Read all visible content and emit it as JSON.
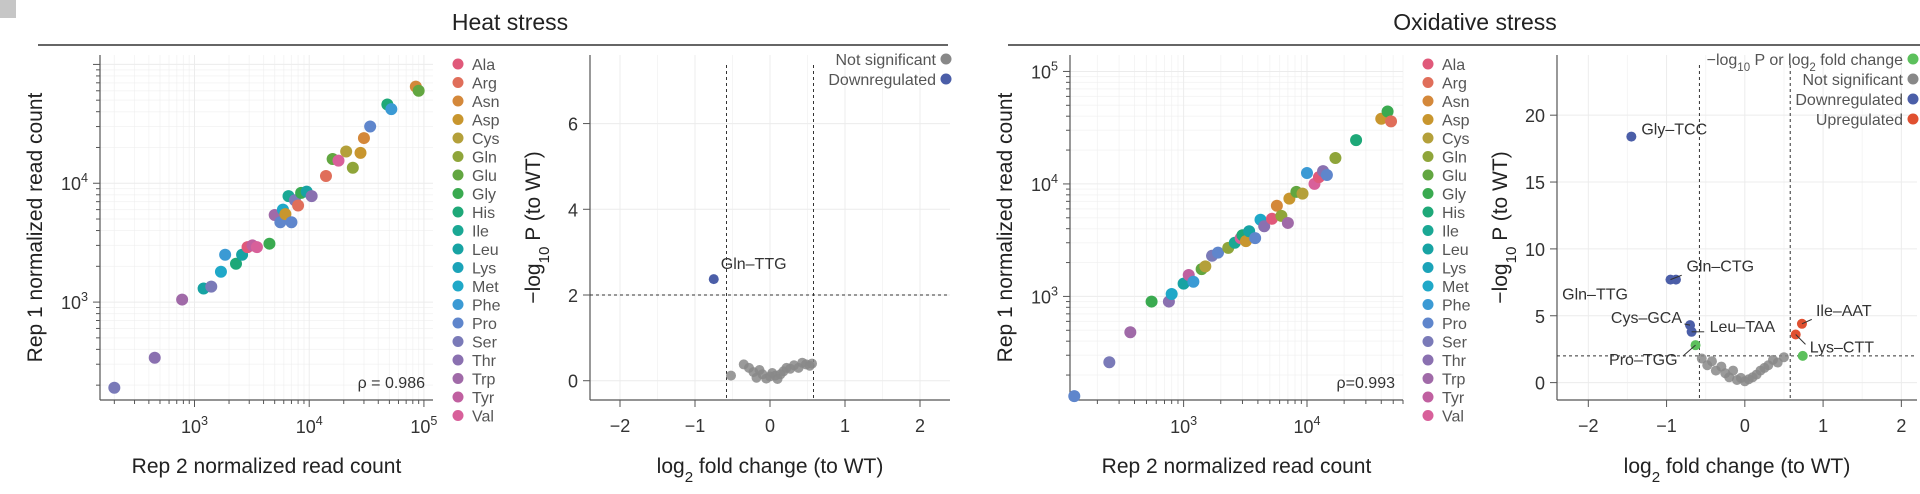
{
  "corner_mark": "",
  "panel_titles": {
    "heat": "Heat stress",
    "oxidative": "Oxidative stress"
  },
  "amino_acids": [
    "Ala",
    "Arg",
    "Asn",
    "Asp",
    "Cys",
    "Gln",
    "Glu",
    "Gly",
    "His",
    "Ile",
    "Leu",
    "Lys",
    "Met",
    "Phe",
    "Pro",
    "Ser",
    "Thr",
    "Trp",
    "Tyr",
    "Val"
  ],
  "aa_colors": {
    "Ala": "#e0597a",
    "Arg": "#e06e5a",
    "Asn": "#d4883a",
    "Asp": "#c8962e",
    "Cys": "#b4a03a",
    "Gln": "#8fa53a",
    "Glu": "#62a640",
    "Gly": "#3aaa50",
    "His": "#1ea878",
    "Ile": "#1aa894",
    "Leu": "#17a3a3",
    "Lys": "#1ba3b8",
    "Met": "#1fa8c8",
    "Phe": "#3b9ad4",
    "Pro": "#5f86cc",
    "Ser": "#7a7ab8",
    "Thr": "#8a70b0",
    "Trp": "#a06aa8",
    "Tyr": "#c060a0",
    "Val": "#d8609a"
  },
  "status_colors": {
    "not_significant": "#888888",
    "downregulated": "#4b5ea8",
    "upregulated": "#e05030",
    "threshold": "#5cc05c"
  },
  "chart_data": [
    {
      "id": "heat_scatter",
      "type": "scatter",
      "title": "Heat stress",
      "xlabel": "Rep 2 normalized read count",
      "ylabel": "Rep 1 normalized read count",
      "xscale": "log",
      "yscale": "log",
      "xlim": [
        150,
        120000
      ],
      "ylim": [
        150,
        120000
      ],
      "xticks": [
        {
          "v": 1000,
          "label": "10³"
        },
        {
          "v": 10000,
          "label": "10⁴"
        },
        {
          "v": 100000,
          "label": "10⁵"
        }
      ],
      "yticks": [
        {
          "v": 1000,
          "label": "10³"
        },
        {
          "v": 10000,
          "label": "10⁴"
        }
      ],
      "annotation": "ρ = 0.986",
      "points": [
        {
          "x": 200,
          "y": 190,
          "aa": "Ser"
        },
        {
          "x": 450,
          "y": 340,
          "aa": "Thr"
        },
        {
          "x": 780,
          "y": 1050,
          "aa": "Trp"
        },
        {
          "x": 1200,
          "y": 1300,
          "aa": "Leu"
        },
        {
          "x": 1400,
          "y": 1350,
          "aa": "Ser"
        },
        {
          "x": 1700,
          "y": 1800,
          "aa": "Met"
        },
        {
          "x": 1850,
          "y": 2500,
          "aa": "Phe"
        },
        {
          "x": 2300,
          "y": 2100,
          "aa": "His"
        },
        {
          "x": 2600,
          "y": 2500,
          "aa": "Leu"
        },
        {
          "x": 2900,
          "y": 2900,
          "aa": "Ala"
        },
        {
          "x": 3200,
          "y": 3000,
          "aa": "Tyr"
        },
        {
          "x": 3500,
          "y": 2900,
          "aa": "Val"
        },
        {
          "x": 4500,
          "y": 3100,
          "aa": "Gly"
        },
        {
          "x": 5000,
          "y": 5400,
          "aa": "Trp"
        },
        {
          "x": 5600,
          "y": 4700,
          "aa": "Pro"
        },
        {
          "x": 5900,
          "y": 6000,
          "aa": "Met"
        },
        {
          "x": 6200,
          "y": 5500,
          "aa": "Asp"
        },
        {
          "x": 6600,
          "y": 7800,
          "aa": "Ile"
        },
        {
          "x": 7000,
          "y": 4700,
          "aa": "Pro"
        },
        {
          "x": 7500,
          "y": 7200,
          "aa": "Ser"
        },
        {
          "x": 8000,
          "y": 6500,
          "aa": "Arg"
        },
        {
          "x": 8500,
          "y": 8300,
          "aa": "Gly"
        },
        {
          "x": 9500,
          "y": 8500,
          "aa": "Leu"
        },
        {
          "x": 10500,
          "y": 7800,
          "aa": "Thr"
        },
        {
          "x": 14000,
          "y": 11500,
          "aa": "Arg"
        },
        {
          "x": 16000,
          "y": 16000,
          "aa": "Glu"
        },
        {
          "x": 18000,
          "y": 15500,
          "aa": "Val"
        },
        {
          "x": 21000,
          "y": 18500,
          "aa": "Cys"
        },
        {
          "x": 24000,
          "y": 13500,
          "aa": "Gln"
        },
        {
          "x": 28000,
          "y": 18000,
          "aa": "Asp"
        },
        {
          "x": 30000,
          "y": 24000,
          "aa": "Asn"
        },
        {
          "x": 34000,
          "y": 30000,
          "aa": "Pro"
        },
        {
          "x": 48000,
          "y": 46000,
          "aa": "His"
        },
        {
          "x": 52000,
          "y": 42000,
          "aa": "Phe"
        },
        {
          "x": 85000,
          "y": 65000,
          "aa": "Asn"
        },
        {
          "x": 90000,
          "y": 60000,
          "aa": "Glu"
        }
      ]
    },
    {
      "id": "heat_volcano",
      "type": "scatter",
      "title": "Heat stress",
      "xlabel": "log₂ fold change (to WT)",
      "ylabel": "−log₁₀ P (to WT)",
      "xlim": [
        -2.4,
        2.4
      ],
      "ylim": [
        -0.45,
        7.6
      ],
      "xticks": [
        -2,
        -1,
        0,
        1,
        2
      ],
      "yticks": [
        0,
        2,
        4,
        6
      ],
      "thresholds": {
        "x": [
          -0.58,
          0.58
        ],
        "y": 2
      },
      "legend": [
        "Not significant",
        "Downregulated"
      ],
      "labels": [
        {
          "text": "Gln–TTG",
          "x": -0.75,
          "y": 2.37
        }
      ],
      "points": [
        {
          "x": -0.75,
          "y": 2.37,
          "s": "downregulated"
        },
        {
          "x": -0.52,
          "y": 0.12,
          "s": "not_significant"
        },
        {
          "x": -0.35,
          "y": 0.38,
          "s": "not_significant"
        },
        {
          "x": -0.28,
          "y": 0.3,
          "s": "not_significant"
        },
        {
          "x": -0.22,
          "y": 0.2,
          "s": "not_significant"
        },
        {
          "x": -0.18,
          "y": 0.07,
          "s": "not_significant"
        },
        {
          "x": -0.14,
          "y": 0.25,
          "s": "not_significant"
        },
        {
          "x": -0.1,
          "y": 0.15,
          "s": "not_significant"
        },
        {
          "x": -0.05,
          "y": 0.05,
          "s": "not_significant"
        },
        {
          "x": 0.0,
          "y": 0.1,
          "s": "not_significant"
        },
        {
          "x": 0.03,
          "y": 0.18,
          "s": "not_significant"
        },
        {
          "x": 0.07,
          "y": 0.12,
          "s": "not_significant"
        },
        {
          "x": 0.1,
          "y": 0.04,
          "s": "not_significant"
        },
        {
          "x": 0.14,
          "y": 0.15,
          "s": "not_significant"
        },
        {
          "x": 0.18,
          "y": 0.22,
          "s": "not_significant"
        },
        {
          "x": 0.22,
          "y": 0.3,
          "s": "not_significant"
        },
        {
          "x": 0.27,
          "y": 0.28,
          "s": "not_significant"
        },
        {
          "x": 0.32,
          "y": 0.36,
          "s": "not_significant"
        },
        {
          "x": 0.38,
          "y": 0.3,
          "s": "not_significant"
        },
        {
          "x": 0.43,
          "y": 0.42,
          "s": "not_significant"
        },
        {
          "x": 0.48,
          "y": 0.38,
          "s": "not_significant"
        },
        {
          "x": 0.53,
          "y": 0.35,
          "s": "not_significant"
        },
        {
          "x": 0.56,
          "y": 0.4,
          "s": "not_significant"
        }
      ]
    },
    {
      "id": "ox_scatter",
      "type": "scatter",
      "title": "Oxidative stress",
      "xlabel": "Rep 2 normalized read count",
      "ylabel": "Rep 1 normalized read count",
      "xscale": "log",
      "yscale": "log",
      "xlim": [
        120,
        60000
      ],
      "ylim": [
        120,
        140000
      ],
      "xticks": [
        {
          "v": 1000,
          "label": "10³"
        },
        {
          "v": 10000,
          "label": "10⁴"
        }
      ],
      "yticks": [
        {
          "v": 1000,
          "label": "10³"
        },
        {
          "v": 10000,
          "label": "10⁴"
        },
        {
          "v": 100000,
          "label": "10⁵"
        }
      ],
      "annotation": "ρ=0.993",
      "points": [
        {
          "x": 130,
          "y": 130,
          "aa": "Pro"
        },
        {
          "x": 250,
          "y": 260,
          "aa": "Ser"
        },
        {
          "x": 370,
          "y": 480,
          "aa": "Trp"
        },
        {
          "x": 550,
          "y": 900,
          "aa": "Gly"
        },
        {
          "x": 760,
          "y": 900,
          "aa": "Thr"
        },
        {
          "x": 800,
          "y": 1050,
          "aa": "Met"
        },
        {
          "x": 1000,
          "y": 1300,
          "aa": "Leu"
        },
        {
          "x": 1100,
          "y": 1550,
          "aa": "Tyr"
        },
        {
          "x": 1200,
          "y": 1350,
          "aa": "Phe"
        },
        {
          "x": 1400,
          "y": 1750,
          "aa": "Glu"
        },
        {
          "x": 1500,
          "y": 1850,
          "aa": "Cys"
        },
        {
          "x": 1700,
          "y": 2300,
          "aa": "Ser"
        },
        {
          "x": 1900,
          "y": 2450,
          "aa": "Pro"
        },
        {
          "x": 2300,
          "y": 2700,
          "aa": "Gln"
        },
        {
          "x": 2600,
          "y": 3000,
          "aa": "Ile"
        },
        {
          "x": 2900,
          "y": 3300,
          "aa": "Val"
        },
        {
          "x": 3000,
          "y": 3500,
          "aa": "His"
        },
        {
          "x": 3200,
          "y": 3100,
          "aa": "Asp"
        },
        {
          "x": 3400,
          "y": 3800,
          "aa": "Leu"
        },
        {
          "x": 3800,
          "y": 3300,
          "aa": "Pro"
        },
        {
          "x": 4200,
          "y": 4800,
          "aa": "Met"
        },
        {
          "x": 4500,
          "y": 4200,
          "aa": "Thr"
        },
        {
          "x": 5200,
          "y": 4900,
          "aa": "Ala"
        },
        {
          "x": 5700,
          "y": 6400,
          "aa": "Asn"
        },
        {
          "x": 6200,
          "y": 5200,
          "aa": "Gln"
        },
        {
          "x": 7000,
          "y": 4500,
          "aa": "Trp"
        },
        {
          "x": 7200,
          "y": 7400,
          "aa": "Asp"
        },
        {
          "x": 8200,
          "y": 8500,
          "aa": "Glu"
        },
        {
          "x": 9200,
          "y": 8200,
          "aa": "Cys"
        },
        {
          "x": 10000,
          "y": 12500,
          "aa": "Phe"
        },
        {
          "x": 11500,
          "y": 10000,
          "aa": "Val"
        },
        {
          "x": 12500,
          "y": 11500,
          "aa": "Ala"
        },
        {
          "x": 13500,
          "y": 13000,
          "aa": "Thr"
        },
        {
          "x": 14500,
          "y": 12000,
          "aa": "Pro"
        },
        {
          "x": 17000,
          "y": 17000,
          "aa": "Gln"
        },
        {
          "x": 25000,
          "y": 24500,
          "aa": "His"
        },
        {
          "x": 40000,
          "y": 38000,
          "aa": "Asp"
        },
        {
          "x": 45000,
          "y": 44000,
          "aa": "Gly"
        },
        {
          "x": 48000,
          "y": 36000,
          "aa": "Arg"
        }
      ]
    },
    {
      "id": "ox_volcano",
      "type": "scatter",
      "title": "Oxidative stress",
      "xlabel": "log₂ fold change (to WT)",
      "ylabel": "−log₁₀ P (to WT)",
      "xlim": [
        -2.4,
        2.2
      ],
      "ylim": [
        -1.3,
        24.5
      ],
      "xticks": [
        -2,
        -1,
        0,
        1,
        2
      ],
      "yticks": [
        0,
        5,
        10,
        15,
        20
      ],
      "thresholds": {
        "x": [
          -0.58,
          0.58
        ],
        "y": 2
      },
      "legend": [
        "−log₁₀ P or log₂ fold change",
        "Not significant",
        "Downregulated",
        "Upregulated"
      ],
      "labels": [
        {
          "text": "Gly–TCC",
          "x": -1.45,
          "y": 18.4
        },
        {
          "text": "Gln–CTG",
          "x": -0.95,
          "y": 7.7
        },
        {
          "text": "Gln–TTG",
          "x": -0.88,
          "y": 7.7
        },
        {
          "text": "Cys–GCA",
          "x": -0.7,
          "y": 4.3
        },
        {
          "text": "Leu–TAA",
          "x": -0.68,
          "y": 3.8
        },
        {
          "text": "Pro–TGG",
          "x": -0.63,
          "y": 2.8
        },
        {
          "text": "Ile–AAT",
          "x": 0.73,
          "y": 4.4
        },
        {
          "text": "Lys–CTT",
          "x": 0.65,
          "y": 3.6
        }
      ],
      "points": [
        {
          "x": -1.45,
          "y": 18.4,
          "s": "downregulated"
        },
        {
          "x": -0.95,
          "y": 7.7,
          "s": "downregulated"
        },
        {
          "x": -0.88,
          "y": 7.7,
          "s": "downregulated"
        },
        {
          "x": -0.7,
          "y": 4.3,
          "s": "downregulated"
        },
        {
          "x": -0.68,
          "y": 3.8,
          "s": "downregulated"
        },
        {
          "x": -0.63,
          "y": 2.8,
          "s": "threshold"
        },
        {
          "x": 0.65,
          "y": 3.6,
          "s": "upregulated"
        },
        {
          "x": 0.73,
          "y": 4.4,
          "s": "upregulated"
        },
        {
          "x": 0.74,
          "y": 2.0,
          "s": "threshold"
        },
        {
          "x": -0.55,
          "y": 1.8,
          "s": "not_significant"
        },
        {
          "x": -0.48,
          "y": 1.3,
          "s": "not_significant"
        },
        {
          "x": -0.42,
          "y": 1.6,
          "s": "not_significant"
        },
        {
          "x": -0.37,
          "y": 0.9,
          "s": "not_significant"
        },
        {
          "x": -0.3,
          "y": 1.2,
          "s": "not_significant"
        },
        {
          "x": -0.25,
          "y": 0.7,
          "s": "not_significant"
        },
        {
          "x": -0.2,
          "y": 0.4,
          "s": "not_significant"
        },
        {
          "x": -0.15,
          "y": 0.9,
          "s": "not_significant"
        },
        {
          "x": -0.1,
          "y": 0.2,
          "s": "not_significant"
        },
        {
          "x": -0.05,
          "y": 0.35,
          "s": "not_significant"
        },
        {
          "x": 0.0,
          "y": 0.1,
          "s": "not_significant"
        },
        {
          "x": 0.05,
          "y": 0.25,
          "s": "not_significant"
        },
        {
          "x": 0.1,
          "y": 0.4,
          "s": "not_significant"
        },
        {
          "x": 0.15,
          "y": 0.6,
          "s": "not_significant"
        },
        {
          "x": 0.2,
          "y": 0.9,
          "s": "not_significant"
        },
        {
          "x": 0.25,
          "y": 1.1,
          "s": "not_significant"
        },
        {
          "x": 0.3,
          "y": 1.3,
          "s": "not_significant"
        },
        {
          "x": 0.36,
          "y": 1.7,
          "s": "not_significant"
        },
        {
          "x": 0.42,
          "y": 1.5,
          "s": "not_significant"
        },
        {
          "x": 0.5,
          "y": 1.9,
          "s": "not_significant"
        }
      ]
    }
  ]
}
